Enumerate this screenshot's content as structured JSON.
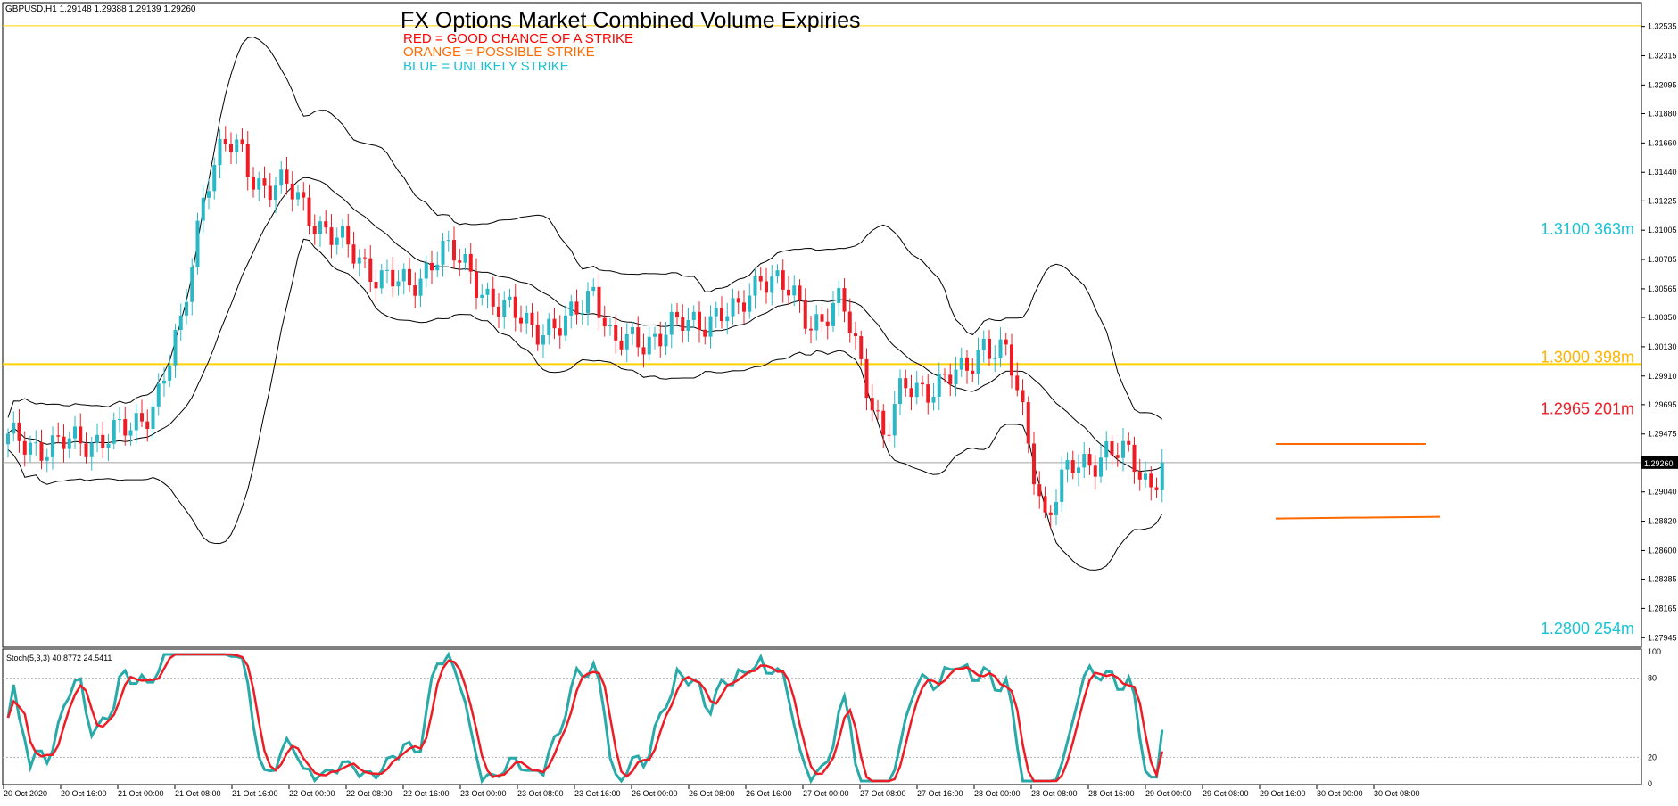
{
  "symbol_header": "GBPUSD,H1  1.29148 1.29388 1.29139 1.29260",
  "title": "FX Options Market Combined Volume Expiries",
  "legend": [
    {
      "text": "RED = GOOD CHANCE OF A STRIKE",
      "color": "#ff0000"
    },
    {
      "text": "ORANGE = POSSIBLE STRIKE",
      "color": "#ff6a00"
    },
    {
      "text": "BLUE = UNLIKELY STRIKE",
      "color": "#19c3d3"
    }
  ],
  "colors": {
    "bull_candle": "#2ab7c6",
    "bear_candle": "#ee1c24",
    "bands": "#000000",
    "stoch_main": "#2aa9a9",
    "stoch_signal": "#ee1c24",
    "price_line": "#a0a0a0",
    "yellow_line": "#ffd000",
    "orange_range": "#ff6a00"
  },
  "chart_data": [
    {
      "type": "candlestick",
      "instrument": "GBPUSD",
      "timeframe": "H1",
      "ohlc_header": {
        "open": 1.29148,
        "high": 1.29388,
        "low": 1.29139,
        "close": 1.2926
      },
      "ylim": [
        1.279,
        1.3268
      ],
      "y_ticks": [
        "1.32535",
        "1.32315",
        "1.32095",
        "1.31880",
        "1.31660",
        "1.31440",
        "1.31225",
        "1.31005",
        "1.30785",
        "1.30565",
        "1.30350",
        "1.30130",
        "1.29910",
        "1.29695",
        "1.29475",
        "1.29040",
        "1.28820",
        "1.28600",
        "1.28385",
        "1.28165",
        "1.27945"
      ],
      "current_price_label": "1.29260",
      "current_price": 1.2926,
      "x_ticks": [
        "20 Oct 2020",
        "20 Oct 16:00",
        "21 Oct 00:00",
        "21 Oct 08:00",
        "21 Oct 16:00",
        "22 Oct 00:00",
        "22 Oct 08:00",
        "22 Oct 16:00",
        "23 Oct 00:00",
        "23 Oct 08:00",
        "23 Oct 16:00",
        "26 Oct 00:00",
        "26 Oct 08:00",
        "26 Oct 16:00",
        "27 Oct 00:00",
        "27 Oct 08:00",
        "27 Oct 16:00",
        "28 Oct 00:00",
        "28 Oct 08:00",
        "28 Oct 16:00",
        "29 Oct 00:00",
        "29 Oct 08:00",
        "29 Oct 16:00",
        "30 Oct 00:00",
        "30 Oct 08:00"
      ],
      "bar_count": 208,
      "close_anchors": [
        [
          0,
          1.2942
        ],
        [
          8,
          1.2938
        ],
        [
          20,
          1.295
        ],
        [
          24,
          1.2975
        ],
        [
          28,
          1.3025
        ],
        [
          32,
          1.314
        ],
        [
          35,
          1.3165
        ],
        [
          38,
          1.3155
        ],
        [
          40,
          1.3138
        ],
        [
          45,
          1.3132
        ],
        [
          50,
          1.3108
        ],
        [
          55,
          1.3085
        ],
        [
          60,
          1.3068
        ],
        [
          65,
          1.3055
        ],
        [
          70,
          1.3088
        ],
        [
          75,
          1.3068
        ],
        [
          80,
          1.304
        ],
        [
          85,
          1.303
        ],
        [
          90,
          1.3025
        ],
        [
          95,
          1.306
        ],
        [
          98,
          1.3012
        ],
        [
          102,
          1.3018
        ],
        [
          105,
          1.3022
        ],
        [
          110,
          1.303
        ],
        [
          115,
          1.3038
        ],
        [
          118,
          1.3035
        ],
        [
          122,
          1.307
        ],
        [
          125,
          1.306
        ],
        [
          130,
          1.3032
        ],
        [
          135,
          1.3045
        ],
        [
          140,
          1.2975
        ],
        [
          142,
          1.2945
        ],
        [
          145,
          1.298
        ],
        [
          150,
          1.2985
        ],
        [
          155,
          1.2992
        ],
        [
          158,
          1.3018
        ],
        [
          162,
          1.3005
        ],
        [
          165,
          1.295
        ],
        [
          168,
          1.2885
        ],
        [
          172,
          1.292
        ],
        [
          178,
          1.2935
        ],
        [
          182,
          1.2928
        ],
        [
          185,
          1.291
        ],
        [
          187,
          1.2926
        ]
      ],
      "bollinger_note": "Bollinger Bands (upper, middle, lower)",
      "horizontal_levels": [
        {
          "label": "1.3100 363m",
          "price": 1.31,
          "color": "#19c3d3",
          "line": false
        },
        {
          "label": "1.3000 398m",
          "price": 1.3,
          "color": "#ffb400",
          "line": true
        },
        {
          "label": "1.2965 201m",
          "price": 1.2965,
          "color": "#ee1c24",
          "line": false
        },
        {
          "label": "1.2800 254m",
          "price": 1.28,
          "color": "#19c3d3",
          "line": false
        }
      ],
      "top_line_price": 1.3254,
      "range_box": {
        "high": 1.294,
        "low": 1.2884,
        "color": "#ff6a00"
      }
    },
    {
      "type": "line",
      "indicator": "Stochastic",
      "header": "Stoch(5,3,3) 40.8772 24.5411",
      "main_value": 40.8772,
      "signal_value": 24.5411,
      "ylim": [
        0,
        100
      ],
      "y_ticks": [
        "100",
        "80",
        "20",
        "0"
      ],
      "levels": [
        80,
        20
      ]
    }
  ]
}
